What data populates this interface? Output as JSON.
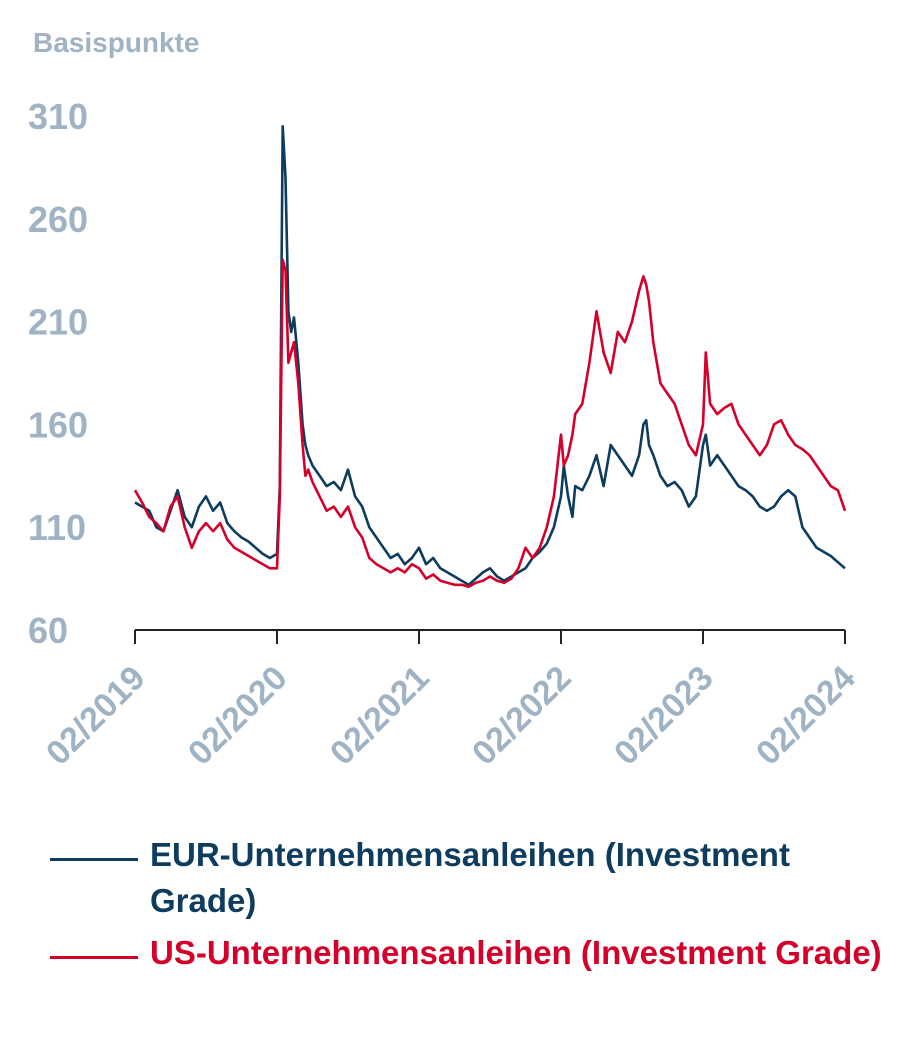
{
  "colors": {
    "axis_text": "#9fb3c4",
    "axis_line": "#222222",
    "eur": "#0d3c5e",
    "us": "#d4002a"
  },
  "chart_data": {
    "type": "line",
    "ylabel": "Basispunkte",
    "ylim": [
      60,
      310
    ],
    "yticks": [
      310,
      260,
      210,
      160,
      110,
      60
    ],
    "xlim": [
      2019.0,
      2024.0
    ],
    "xticks": [
      2019,
      2020,
      2021,
      2022,
      2023,
      2024
    ],
    "xtick_labels": [
      "02/2019",
      "02/2020",
      "02/2021",
      "02/2022",
      "02/2023",
      "02/2024"
    ],
    "series": [
      {
        "name": "EUR-Unternehmensanleihen (Investment Grade)",
        "color": "#0d3c5e",
        "x": [
          2019.0,
          2019.05,
          2019.1,
          2019.15,
          2019.2,
          2019.25,
          2019.3,
          2019.35,
          2019.4,
          2019.45,
          2019.5,
          2019.55,
          2019.6,
          2019.65,
          2019.7,
          2019.75,
          2019.8,
          2019.85,
          2019.9,
          2019.95,
          2020.0,
          2020.02,
          2020.04,
          2020.06,
          2020.08,
          2020.1,
          2020.12,
          2020.15,
          2020.18,
          2020.2,
          2020.22,
          2020.25,
          2020.3,
          2020.35,
          2020.4,
          2020.45,
          2020.5,
          2020.55,
          2020.6,
          2020.65,
          2020.7,
          2020.75,
          2020.8,
          2020.85,
          2020.9,
          2020.95,
          2021.0,
          2021.05,
          2021.1,
          2021.15,
          2021.2,
          2021.25,
          2021.3,
          2021.35,
          2021.4,
          2021.45,
          2021.5,
          2021.55,
          2021.6,
          2021.65,
          2021.7,
          2021.75,
          2021.8,
          2021.85,
          2021.9,
          2021.95,
          2022.0,
          2022.02,
          2022.05,
          2022.08,
          2022.1,
          2022.15,
          2022.2,
          2022.25,
          2022.3,
          2022.35,
          2022.4,
          2022.45,
          2022.5,
          2022.55,
          2022.58,
          2022.6,
          2022.62,
          2022.65,
          2022.7,
          2022.75,
          2022.8,
          2022.85,
          2022.9,
          2022.95,
          2023.0,
          2023.02,
          2023.05,
          2023.1,
          2023.15,
          2023.2,
          2023.25,
          2023.3,
          2023.35,
          2023.4,
          2023.45,
          2023.5,
          2023.55,
          2023.6,
          2023.65,
          2023.7,
          2023.75,
          2023.8,
          2023.85,
          2023.9,
          2023.95,
          2024.0
        ],
        "values": [
          122,
          120,
          118,
          110,
          108,
          118,
          128,
          115,
          110,
          120,
          125,
          118,
          122,
          112,
          108,
          105,
          103,
          100,
          97,
          95,
          97,
          130,
          305,
          280,
          215,
          205,
          212,
          190,
          160,
          150,
          145,
          140,
          135,
          130,
          132,
          128,
          138,
          125,
          120,
          110,
          105,
          100,
          95,
          97,
          92,
          95,
          100,
          92,
          95,
          90,
          88,
          86,
          84,
          82,
          85,
          88,
          90,
          86,
          84,
          86,
          88,
          90,
          95,
          98,
          102,
          110,
          125,
          140,
          125,
          115,
          130,
          128,
          135,
          145,
          130,
          150,
          145,
          140,
          135,
          145,
          160,
          162,
          150,
          145,
          135,
          130,
          132,
          128,
          120,
          125,
          150,
          155,
          140,
          145,
          140,
          135,
          130,
          128,
          125,
          120,
          118,
          120,
          125,
          128,
          125,
          110,
          105,
          100,
          98,
          96,
          93,
          90
        ]
      },
      {
        "name": "US-Unternehmensanleihen (Investment Grade)",
        "color": "#d4002a",
        "x": [
          2019.0,
          2019.05,
          2019.1,
          2019.15,
          2019.2,
          2019.25,
          2019.3,
          2019.35,
          2019.4,
          2019.45,
          2019.5,
          2019.55,
          2019.6,
          2019.65,
          2019.7,
          2019.75,
          2019.8,
          2019.85,
          2019.9,
          2019.95,
          2020.0,
          2020.02,
          2020.04,
          2020.06,
          2020.08,
          2020.1,
          2020.12,
          2020.15,
          2020.18,
          2020.2,
          2020.22,
          2020.25,
          2020.3,
          2020.35,
          2020.4,
          2020.45,
          2020.5,
          2020.55,
          2020.6,
          2020.65,
          2020.7,
          2020.75,
          2020.8,
          2020.85,
          2020.9,
          2020.95,
          2021.0,
          2021.05,
          2021.1,
          2021.15,
          2021.2,
          2021.25,
          2021.3,
          2021.35,
          2021.4,
          2021.45,
          2021.5,
          2021.55,
          2021.6,
          2021.65,
          2021.7,
          2021.75,
          2021.8,
          2021.85,
          2021.9,
          2021.95,
          2022.0,
          2022.02,
          2022.05,
          2022.08,
          2022.1,
          2022.15,
          2022.2,
          2022.25,
          2022.3,
          2022.35,
          2022.4,
          2022.45,
          2022.5,
          2022.55,
          2022.58,
          2022.6,
          2022.62,
          2022.65,
          2022.7,
          2022.75,
          2022.8,
          2022.85,
          2022.9,
          2022.95,
          2023.0,
          2023.02,
          2023.05,
          2023.1,
          2023.15,
          2023.2,
          2023.25,
          2023.3,
          2023.35,
          2023.4,
          2023.45,
          2023.5,
          2023.55,
          2023.6,
          2023.65,
          2023.7,
          2023.75,
          2023.8,
          2023.85,
          2023.9,
          2023.95,
          2024.0
        ],
        "values": [
          128,
          122,
          115,
          112,
          108,
          120,
          125,
          110,
          100,
          108,
          112,
          108,
          112,
          104,
          100,
          98,
          96,
          94,
          92,
          90,
          90,
          125,
          240,
          235,
          190,
          195,
          200,
          180,
          150,
          135,
          138,
          132,
          125,
          118,
          120,
          115,
          120,
          110,
          105,
          95,
          92,
          90,
          88,
          90,
          88,
          92,
          90,
          85,
          87,
          84,
          83,
          82,
          82,
          81,
          83,
          84,
          86,
          84,
          83,
          85,
          90,
          100,
          95,
          100,
          110,
          125,
          155,
          140,
          145,
          155,
          165,
          170,
          190,
          215,
          195,
          185,
          205,
          200,
          210,
          225,
          232,
          228,
          220,
          200,
          180,
          175,
          170,
          160,
          150,
          145,
          160,
          195,
          170,
          165,
          168,
          170,
          160,
          155,
          150,
          145,
          150,
          160,
          162,
          155,
          150,
          148,
          145,
          140,
          135,
          130,
          128,
          118
        ]
      }
    ]
  },
  "legend": {
    "eur_label": "EUR-Unternehmensanleihen (Investment Grade)",
    "us_label": "US-Unternehmensanleihen (Investment Grade)"
  }
}
